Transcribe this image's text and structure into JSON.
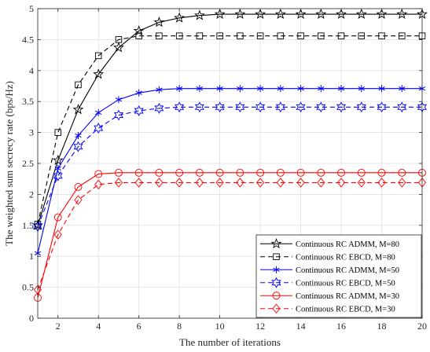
{
  "chart_data": {
    "type": "line",
    "title": "",
    "xlabel": "The number of iterations",
    "ylabel": "The weighted sum secrecy rate (bps/Hz)",
    "xlim": [
      1,
      20
    ],
    "ylim": [
      0,
      5
    ],
    "xticks": [
      2,
      4,
      6,
      8,
      10,
      12,
      14,
      16,
      18,
      20
    ],
    "yticks": [
      0,
      0.5,
      1,
      1.5,
      2,
      2.5,
      3,
      3.5,
      4,
      4.5,
      5
    ],
    "grid": true,
    "legend_position": "bottom-right",
    "x": [
      1,
      2,
      3,
      4,
      5,
      6,
      7,
      8,
      9,
      10,
      11,
      12,
      13,
      14,
      15,
      16,
      17,
      18,
      19,
      20
    ],
    "series": [
      {
        "name": "Continuous RC ADMM, M=80",
        "color": "#000000",
        "line_style": "solid",
        "marker": "star",
        "values": [
          1.5,
          2.55,
          3.37,
          3.94,
          4.37,
          4.64,
          4.78,
          4.85,
          4.89,
          4.91,
          4.91,
          4.91,
          4.91,
          4.91,
          4.91,
          4.91,
          4.91,
          4.91,
          4.91,
          4.91
        ]
      },
      {
        "name": "Continuous RC EBCD, M=80",
        "color": "#000000",
        "line_style": "dashed",
        "marker": "square",
        "values": [
          1.52,
          3.0,
          3.77,
          4.24,
          4.5,
          4.56,
          4.56,
          4.56,
          4.56,
          4.56,
          4.56,
          4.56,
          4.56,
          4.56,
          4.56,
          4.56,
          4.56,
          4.56,
          4.56,
          4.56
        ]
      },
      {
        "name": "Continuous RC ADMM, M=50",
        "color": "#0000ff",
        "line_style": "solid",
        "marker": "asterisk",
        "values": [
          1.05,
          2.42,
          2.95,
          3.32,
          3.53,
          3.64,
          3.69,
          3.71,
          3.71,
          3.71,
          3.71,
          3.71,
          3.71,
          3.71,
          3.71,
          3.71,
          3.71,
          3.71,
          3.71,
          3.71
        ]
      },
      {
        "name": "Continuous RC EBCD, M=50",
        "color": "#0000ff",
        "line_style": "dashed",
        "marker": "hexagram",
        "values": [
          1.48,
          2.3,
          2.77,
          3.07,
          3.28,
          3.35,
          3.39,
          3.41,
          3.41,
          3.41,
          3.41,
          3.41,
          3.41,
          3.41,
          3.41,
          3.41,
          3.41,
          3.41,
          3.41,
          3.41
        ]
      },
      {
        "name": "Continuous RC ADMM, M=30",
        "color": "#ff0000",
        "line_style": "solid",
        "marker": "circle",
        "values": [
          0.33,
          1.63,
          2.12,
          2.33,
          2.35,
          2.35,
          2.35,
          2.35,
          2.35,
          2.35,
          2.35,
          2.35,
          2.35,
          2.35,
          2.35,
          2.35,
          2.35,
          2.35,
          2.35,
          2.35
        ]
      },
      {
        "name": "Continuous RC EBCD, M=30",
        "color": "#ff0000",
        "line_style": "dashed",
        "marker": "diamond",
        "values": [
          0.46,
          1.35,
          1.91,
          2.16,
          2.19,
          2.19,
          2.19,
          2.19,
          2.19,
          2.19,
          2.19,
          2.19,
          2.19,
          2.19,
          2.19,
          2.19,
          2.19,
          2.19,
          2.19,
          2.19
        ]
      }
    ]
  }
}
